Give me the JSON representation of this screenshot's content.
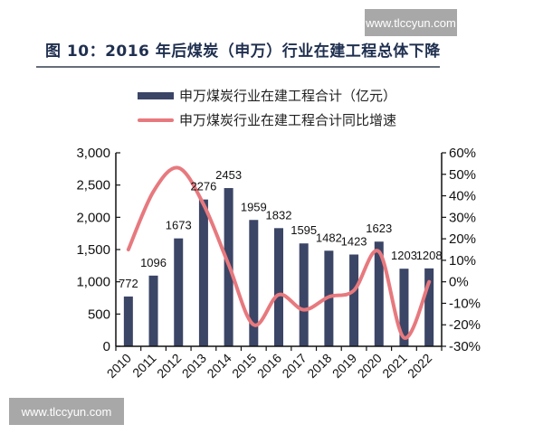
{
  "watermarks": {
    "top": "www.tlccyun.com",
    "bottom": "www.tlccyun.com"
  },
  "header": {
    "title": "图 10：2016 年后煤炭（申万）行业在建工程总体下降"
  },
  "legend": {
    "bar_label": "申万煤炭行业在建工程合计（亿元）",
    "line_label": "申万煤炭行业在建工程合计同比增速"
  },
  "colors": {
    "bar": "#3b4566",
    "line": "#e7797e",
    "axis": "#111111"
  },
  "chart_data": {
    "type": "bar+line",
    "title": "图 10：2016 年后煤炭（申万）行业在建工程总体下降",
    "categories": [
      "2010",
      "2011",
      "2012",
      "2013",
      "2014",
      "2015",
      "2016",
      "2017",
      "2018",
      "2019",
      "2020",
      "2021",
      "2022"
    ],
    "series": [
      {
        "name": "申万煤炭行业在建工程合计（亿元）",
        "type": "bar",
        "axis": "left",
        "values": [
          772,
          1096,
          1673,
          2276,
          2453,
          1959,
          1832,
          1595,
          1482,
          1423,
          1623,
          1203,
          1208
        ]
      },
      {
        "name": "申万煤炭行业在建工程合计同比增速",
        "type": "line",
        "axis": "right",
        "unit": "%",
        "values": [
          15,
          42,
          53,
          36,
          8,
          -20,
          -6,
          -13,
          -7,
          -4,
          14,
          -26,
          0
        ]
      }
    ],
    "left_axis": {
      "ylim": [
        0,
        3000
      ],
      "ticks": [
        "0",
        "500",
        "1,000",
        "1,500",
        "2,000",
        "2,500",
        "3,000"
      ]
    },
    "right_axis": {
      "ylim": [
        -30,
        60
      ],
      "ticks": [
        "-30%",
        "-20%",
        "-10%",
        "0%",
        "10%",
        "20%",
        "30%",
        "40%",
        "50%",
        "60%"
      ]
    },
    "xlabel": "",
    "ylabel": "",
    "grid": false,
    "legend_position": "top"
  }
}
